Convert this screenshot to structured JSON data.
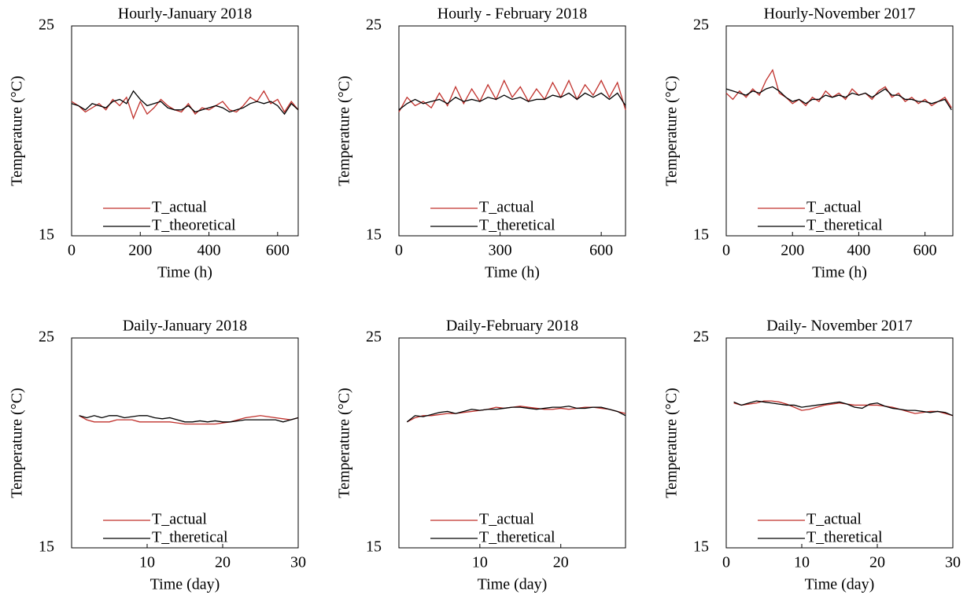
{
  "chart_data": [
    {
      "type": "line",
      "title": "Hourly-January 2018",
      "xlabel": "Time (h)",
      "ylabel": "Temperature (°C)",
      "x": [
        0,
        20,
        40,
        60,
        80,
        100,
        120,
        140,
        160,
        180,
        200,
        220,
        240,
        260,
        280,
        300,
        320,
        340,
        360,
        380,
        400,
        420,
        440,
        460,
        480,
        500,
        520,
        540,
        560,
        580,
        600,
        620,
        640,
        660
      ],
      "series": [
        {
          "name": "T_actual",
          "color": "#c0302b",
          "values": [
            21.4,
            21.2,
            20.9,
            21.1,
            21.3,
            21.0,
            21.5,
            21.2,
            21.6,
            20.6,
            21.4,
            20.8,
            21.1,
            21.5,
            21.2,
            21.0,
            20.9,
            21.3,
            20.8,
            21.1,
            21.0,
            21.2,
            21.4,
            21.0,
            20.9,
            21.2,
            21.6,
            21.4,
            21.9,
            21.3,
            21.5,
            20.9,
            21.4,
            21.0
          ]
        },
        {
          "name": "T_theoretical",
          "color": "#000000",
          "values": [
            21.3,
            21.2,
            21.0,
            21.3,
            21.2,
            21.1,
            21.4,
            21.5,
            21.3,
            21.9,
            21.5,
            21.2,
            21.3,
            21.4,
            21.1,
            21.0,
            21.0,
            21.2,
            20.9,
            21.0,
            21.1,
            21.2,
            21.1,
            20.9,
            21.0,
            21.1,
            21.3,
            21.4,
            21.3,
            21.4,
            21.2,
            20.8,
            21.3,
            21.0
          ]
        }
      ],
      "xlim": [
        0,
        660
      ],
      "xticks": [
        0,
        200,
        400,
        600
      ],
      "ylim": [
        15,
        25
      ],
      "yticks": [
        15,
        25
      ]
    },
    {
      "type": "line",
      "title": "Hourly - February 2018",
      "xlabel": "Time (h)",
      "ylabel": "Temperature (°C)",
      "x": [
        0,
        24,
        48,
        72,
        96,
        120,
        144,
        168,
        192,
        216,
        240,
        264,
        288,
        312,
        336,
        360,
        384,
        408,
        432,
        456,
        480,
        504,
        528,
        552,
        576,
        600,
        624,
        648,
        672
      ],
      "series": [
        {
          "name": "T_actual",
          "color": "#c0302b",
          "values": [
            20.9,
            21.6,
            21.2,
            21.4,
            21.1,
            21.8,
            21.2,
            22.1,
            21.3,
            22.0,
            21.4,
            22.2,
            21.5,
            22.4,
            21.6,
            22.1,
            21.4,
            22.0,
            21.5,
            22.3,
            21.6,
            22.4,
            21.5,
            22.2,
            21.7,
            22.4,
            21.6,
            22.3,
            21.0
          ]
        },
        {
          "name": "T_theretical",
          "color": "#000000",
          "values": [
            21.0,
            21.3,
            21.5,
            21.3,
            21.4,
            21.5,
            21.3,
            21.6,
            21.4,
            21.5,
            21.4,
            21.6,
            21.5,
            21.7,
            21.5,
            21.6,
            21.4,
            21.5,
            21.5,
            21.7,
            21.6,
            21.8,
            21.5,
            21.8,
            21.6,
            21.8,
            21.5,
            21.8,
            21.2
          ]
        }
      ],
      "xlim": [
        0,
        672
      ],
      "xticks": [
        0,
        300,
        600
      ],
      "ylim": [
        15,
        25
      ],
      "yticks": [
        15,
        25
      ]
    },
    {
      "type": "line",
      "title": "Hourly-November 2017",
      "xlabel": "Time (h)",
      "ylabel": "Temperature (°C)",
      "x": [
        0,
        20,
        40,
        60,
        80,
        100,
        120,
        140,
        160,
        180,
        200,
        220,
        240,
        260,
        280,
        300,
        320,
        340,
        360,
        380,
        400,
        420,
        440,
        460,
        480,
        500,
        520,
        540,
        560,
        580,
        600,
        620,
        640,
        660,
        680
      ],
      "series": [
        {
          "name": "T_actual",
          "color": "#c0302b",
          "values": [
            21.8,
            21.5,
            21.9,
            21.6,
            22.0,
            21.7,
            22.4,
            22.9,
            21.8,
            21.6,
            21.3,
            21.5,
            21.2,
            21.6,
            21.4,
            21.9,
            21.6,
            21.8,
            21.5,
            22.0,
            21.7,
            21.8,
            21.5,
            21.9,
            22.1,
            21.6,
            21.8,
            21.4,
            21.6,
            21.3,
            21.5,
            21.2,
            21.4,
            21.6,
            21.1
          ]
        },
        {
          "name": "T_theretical",
          "color": "#000000",
          "values": [
            22.0,
            21.9,
            21.8,
            21.7,
            21.9,
            21.8,
            22.0,
            22.1,
            21.9,
            21.6,
            21.4,
            21.5,
            21.3,
            21.5,
            21.5,
            21.7,
            21.6,
            21.7,
            21.6,
            21.8,
            21.7,
            21.8,
            21.6,
            21.8,
            22.0,
            21.7,
            21.7,
            21.5,
            21.5,
            21.4,
            21.4,
            21.3,
            21.4,
            21.5,
            21.0
          ]
        }
      ],
      "xlim": [
        0,
        684
      ],
      "xticks": [
        0,
        200,
        400,
        600
      ],
      "ylim": [
        15,
        25
      ],
      "yticks": [
        15,
        25
      ]
    },
    {
      "type": "line",
      "title": "Daily-January 2018",
      "xlabel": "Time (day)",
      "ylabel": "Temperature (°C)",
      "x": [
        1,
        2,
        3,
        4,
        5,
        6,
        7,
        8,
        9,
        10,
        11,
        12,
        13,
        14,
        15,
        16,
        17,
        18,
        19,
        20,
        21,
        22,
        23,
        24,
        25,
        26,
        27,
        28,
        29,
        30
      ],
      "series": [
        {
          "name": "T_actual",
          "color": "#c0302b",
          "values": [
            21.3,
            21.1,
            21.0,
            21.0,
            21.0,
            21.1,
            21.1,
            21.1,
            21.0,
            21.0,
            21.0,
            21.0,
            21.0,
            20.95,
            20.9,
            20.9,
            20.9,
            20.9,
            20.9,
            20.95,
            21.0,
            21.1,
            21.2,
            21.25,
            21.3,
            21.25,
            21.2,
            21.15,
            21.1,
            21.2
          ]
        },
        {
          "name": "T_theretical",
          "color": "#000000",
          "values": [
            21.3,
            21.2,
            21.3,
            21.2,
            21.3,
            21.3,
            21.2,
            21.25,
            21.3,
            21.3,
            21.2,
            21.15,
            21.2,
            21.1,
            21.0,
            21.0,
            21.05,
            21.0,
            21.05,
            21.0,
            21.0,
            21.05,
            21.1,
            21.1,
            21.1,
            21.1,
            21.1,
            21.0,
            21.1,
            21.2
          ]
        }
      ],
      "xlim": [
        0,
        30
      ],
      "xticks": [
        10,
        20,
        30
      ],
      "ylim": [
        15,
        25
      ],
      "yticks": [
        15,
        25
      ]
    },
    {
      "type": "line",
      "title": "Daily-February 2018",
      "xlabel": "Time (day)",
      "ylabel": "Temperature (°C)",
      "x": [
        1,
        2,
        3,
        4,
        5,
        6,
        7,
        8,
        9,
        10,
        11,
        12,
        13,
        14,
        15,
        16,
        17,
        18,
        19,
        20,
        21,
        22,
        23,
        24,
        25,
        26,
        27,
        28
      ],
      "series": [
        {
          "name": "T_actual",
          "color": "#c0302b",
          "values": [
            21.0,
            21.2,
            21.3,
            21.3,
            21.35,
            21.4,
            21.4,
            21.45,
            21.5,
            21.55,
            21.6,
            21.7,
            21.65,
            21.7,
            21.75,
            21.7,
            21.65,
            21.6,
            21.6,
            21.65,
            21.6,
            21.65,
            21.7,
            21.7,
            21.65,
            21.6,
            21.5,
            21.4
          ]
        },
        {
          "name": "T_theretical",
          "color": "#000000",
          "values": [
            21.0,
            21.3,
            21.25,
            21.35,
            21.45,
            21.5,
            21.4,
            21.5,
            21.6,
            21.55,
            21.6,
            21.6,
            21.65,
            21.7,
            21.7,
            21.65,
            21.6,
            21.65,
            21.7,
            21.7,
            21.75,
            21.65,
            21.65,
            21.7,
            21.7,
            21.6,
            21.5,
            21.3
          ]
        }
      ],
      "xlim": [
        0,
        28
      ],
      "xticks": [
        10,
        20
      ],
      "ylim": [
        15,
        25
      ],
      "yticks": [
        15,
        25
      ]
    },
    {
      "type": "line",
      "title": "Daily- November 2017",
      "xlabel": "Time (day)",
      "ylabel": "Temperature (°C)",
      "x": [
        1,
        2,
        3,
        4,
        5,
        6,
        7,
        8,
        9,
        10,
        11,
        12,
        13,
        14,
        15,
        16,
        17,
        18,
        19,
        20,
        21,
        22,
        23,
        24,
        25,
        26,
        27,
        28,
        29,
        30
      ],
      "series": [
        {
          "name": "T_actual",
          "color": "#c0302b",
          "values": [
            21.9,
            21.8,
            21.85,
            21.9,
            22.0,
            22.0,
            21.95,
            21.85,
            21.7,
            21.55,
            21.6,
            21.7,
            21.8,
            21.85,
            21.9,
            21.85,
            21.8,
            21.8,
            21.8,
            21.8,
            21.75,
            21.7,
            21.6,
            21.5,
            21.4,
            21.45,
            21.5,
            21.5,
            21.4,
            21.3
          ]
        },
        {
          "name": "T_theretical",
          "color": "#000000",
          "values": [
            21.95,
            21.8,
            21.9,
            22.0,
            21.95,
            21.9,
            21.85,
            21.8,
            21.8,
            21.7,
            21.75,
            21.8,
            21.85,
            21.9,
            21.95,
            21.85,
            21.7,
            21.65,
            21.85,
            21.9,
            21.75,
            21.65,
            21.6,
            21.55,
            21.55,
            21.5,
            21.45,
            21.5,
            21.45,
            21.3
          ]
        }
      ],
      "xlim": [
        0,
        30
      ],
      "xticks": [
        0,
        10,
        20,
        30
      ],
      "ylim": [
        15,
        25
      ],
      "yticks": [
        15,
        25
      ]
    }
  ]
}
